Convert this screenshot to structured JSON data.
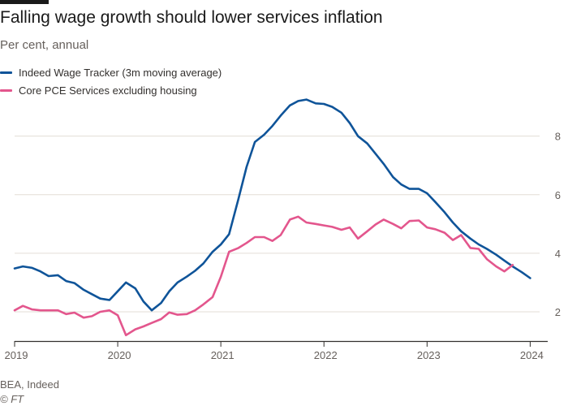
{
  "header": {
    "title": "Falling wage growth should lower services inflation",
    "subtitle": "Per cent, annual"
  },
  "footer": {
    "source": "BEA, Indeed",
    "credit": "© FT"
  },
  "colors": {
    "series_blue": "#0f5499",
    "series_pink": "#e3568d",
    "grid": "#e3ddd6",
    "axis": "#33302e"
  },
  "chart_data": {
    "type": "line",
    "title": "Falling wage growth should lower services inflation",
    "subtitle": "Per cent, annual",
    "xlabel": "",
    "ylabel": "",
    "xlim": [
      2019.0,
      2024.17
    ],
    "ylim": [
      1.0,
      9.6
    ],
    "yticks": [
      2,
      4,
      6,
      8
    ],
    "xticks": [
      2019,
      2020,
      2021,
      2022,
      2023,
      2024
    ],
    "grid": true,
    "legend_position": "top-left",
    "series": [
      {
        "name": "Indeed Wage Tracker (3m moving average)",
        "color": "#0f5499",
        "points": [
          [
            2019.0,
            3.48
          ],
          [
            2019.08,
            3.55
          ],
          [
            2019.17,
            3.5
          ],
          [
            2019.25,
            3.38
          ],
          [
            2019.33,
            3.22
          ],
          [
            2019.42,
            3.25
          ],
          [
            2019.5,
            3.05
          ],
          [
            2019.58,
            2.98
          ],
          [
            2019.67,
            2.75
          ],
          [
            2019.75,
            2.6
          ],
          [
            2019.83,
            2.45
          ],
          [
            2019.92,
            2.4
          ],
          [
            2020.0,
            2.7
          ],
          [
            2020.08,
            3.0
          ],
          [
            2020.17,
            2.8
          ],
          [
            2020.25,
            2.35
          ],
          [
            2020.33,
            2.05
          ],
          [
            2020.42,
            2.3
          ],
          [
            2020.5,
            2.7
          ],
          [
            2020.58,
            3.0
          ],
          [
            2020.67,
            3.2
          ],
          [
            2020.75,
            3.4
          ],
          [
            2020.83,
            3.65
          ],
          [
            2020.92,
            4.05
          ],
          [
            2021.0,
            4.3
          ],
          [
            2021.08,
            4.65
          ],
          [
            2021.17,
            5.85
          ],
          [
            2021.25,
            6.95
          ],
          [
            2021.33,
            7.8
          ],
          [
            2021.42,
            8.05
          ],
          [
            2021.5,
            8.35
          ],
          [
            2021.58,
            8.7
          ],
          [
            2021.67,
            9.05
          ],
          [
            2021.75,
            9.2
          ],
          [
            2021.83,
            9.25
          ],
          [
            2021.92,
            9.12
          ],
          [
            2022.0,
            9.1
          ],
          [
            2022.08,
            9.0
          ],
          [
            2022.17,
            8.8
          ],
          [
            2022.25,
            8.45
          ],
          [
            2022.33,
            8.0
          ],
          [
            2022.42,
            7.75
          ],
          [
            2022.5,
            7.4
          ],
          [
            2022.58,
            7.05
          ],
          [
            2022.67,
            6.6
          ],
          [
            2022.75,
            6.35
          ],
          [
            2022.83,
            6.2
          ],
          [
            2022.92,
            6.2
          ],
          [
            2023.0,
            6.05
          ],
          [
            2023.08,
            5.75
          ],
          [
            2023.17,
            5.4
          ],
          [
            2023.25,
            5.05
          ],
          [
            2023.33,
            4.75
          ],
          [
            2023.42,
            4.5
          ],
          [
            2023.5,
            4.3
          ],
          [
            2023.58,
            4.15
          ],
          [
            2023.67,
            3.95
          ],
          [
            2023.75,
            3.75
          ],
          [
            2023.83,
            3.55
          ],
          [
            2023.92,
            3.35
          ],
          [
            2024.0,
            3.15
          ]
        ]
      },
      {
        "name": "Core PCE Services excluding housing",
        "color": "#e3568d",
        "points": [
          [
            2019.0,
            2.05
          ],
          [
            2019.08,
            2.2
          ],
          [
            2019.17,
            2.08
          ],
          [
            2019.25,
            2.05
          ],
          [
            2019.33,
            2.05
          ],
          [
            2019.42,
            2.05
          ],
          [
            2019.5,
            1.92
          ],
          [
            2019.58,
            1.97
          ],
          [
            2019.67,
            1.8
          ],
          [
            2019.75,
            1.85
          ],
          [
            2019.83,
            2.0
          ],
          [
            2019.92,
            2.05
          ],
          [
            2020.0,
            1.88
          ],
          [
            2020.08,
            1.2
          ],
          [
            2020.17,
            1.4
          ],
          [
            2020.25,
            1.5
          ],
          [
            2020.33,
            1.62
          ],
          [
            2020.42,
            1.75
          ],
          [
            2020.5,
            1.98
          ],
          [
            2020.58,
            1.9
          ],
          [
            2020.67,
            1.92
          ],
          [
            2020.75,
            2.05
          ],
          [
            2020.83,
            2.25
          ],
          [
            2020.92,
            2.5
          ],
          [
            2021.0,
            3.2
          ],
          [
            2021.08,
            4.05
          ],
          [
            2021.17,
            4.18
          ],
          [
            2021.25,
            4.35
          ],
          [
            2021.33,
            4.55
          ],
          [
            2021.42,
            4.55
          ],
          [
            2021.5,
            4.42
          ],
          [
            2021.58,
            4.62
          ],
          [
            2021.67,
            5.15
          ],
          [
            2021.75,
            5.25
          ],
          [
            2021.83,
            5.05
          ],
          [
            2021.92,
            5.0
          ],
          [
            2022.0,
            4.95
          ],
          [
            2022.08,
            4.9
          ],
          [
            2022.17,
            4.8
          ],
          [
            2022.25,
            4.88
          ],
          [
            2022.33,
            4.5
          ],
          [
            2022.42,
            4.75
          ],
          [
            2022.5,
            4.98
          ],
          [
            2022.58,
            5.15
          ],
          [
            2022.67,
            5.0
          ],
          [
            2022.75,
            4.85
          ],
          [
            2022.83,
            5.1
          ],
          [
            2022.92,
            5.12
          ],
          [
            2023.0,
            4.88
          ],
          [
            2023.08,
            4.82
          ],
          [
            2023.17,
            4.7
          ],
          [
            2023.25,
            4.45
          ],
          [
            2023.33,
            4.62
          ],
          [
            2023.42,
            4.18
          ],
          [
            2023.5,
            4.15
          ],
          [
            2023.58,
            3.8
          ],
          [
            2023.67,
            3.55
          ],
          [
            2023.75,
            3.38
          ],
          [
            2023.83,
            3.6
          ]
        ]
      }
    ]
  }
}
